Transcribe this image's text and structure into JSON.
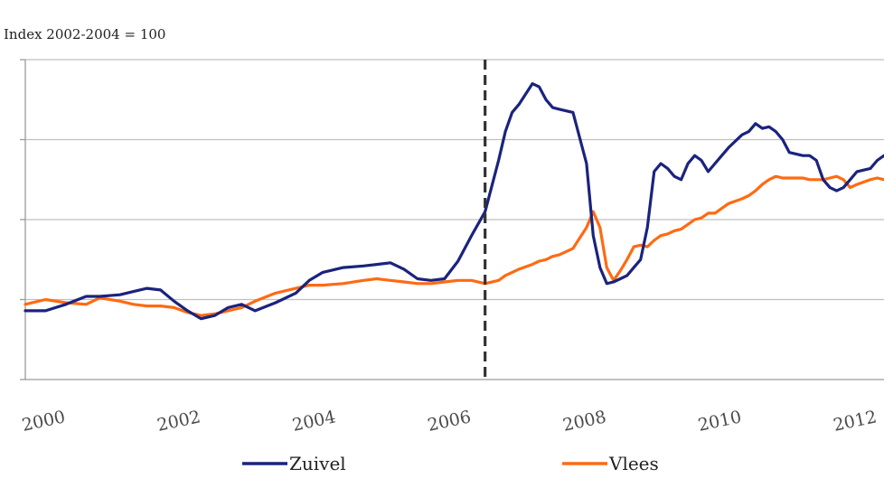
{
  "chart_data": {
    "type": "line",
    "title": "",
    "ylabel": "Index 2002-2004 = 100",
    "xlabel": "",
    "xlim": [
      1999.9,
      2012.6
    ],
    "ylim": [
      50,
      250
    ],
    "yticks": [
      50,
      100,
      150,
      200,
      250
    ],
    "xticks": [
      2000,
      2002,
      2004,
      2006,
      2008,
      2010,
      2012
    ],
    "grid": true,
    "legend": "bottom",
    "vline": 2006.7,
    "colors": {
      "Zuivel": "#1a237e",
      "Vlees": "#ff6a13",
      "vline": "#333333"
    },
    "series": [
      {
        "name": "Zuivel",
        "x": [
          1999.9,
          2000.2,
          2000.5,
          2000.8,
          2001.0,
          2001.3,
          2001.5,
          2001.7,
          2001.9,
          2002.1,
          2002.3,
          2002.5,
          2002.7,
          2002.9,
          2003.1,
          2003.3,
          2003.6,
          2003.9,
          2004.1,
          2004.3,
          2004.6,
          2004.9,
          2005.1,
          2005.3,
          2005.5,
          2005.7,
          2005.9,
          2006.1,
          2006.3,
          2006.5,
          2006.7,
          2006.9,
          2007.0,
          2007.1,
          2007.2,
          2007.4,
          2007.5,
          2007.6,
          2007.7,
          2007.8,
          2008.0,
          2008.2,
          2008.3,
          2008.4,
          2008.5,
          2008.6,
          2008.7,
          2008.8,
          2008.9,
          2009.0,
          2009.1,
          2009.2,
          2009.3,
          2009.4,
          2009.5,
          2009.6,
          2009.7,
          2009.8,
          2009.9,
          2010.0,
          2010.1,
          2010.2,
          2010.3,
          2010.5,
          2010.6,
          2010.7,
          2010.8,
          2010.9,
          2011.0,
          2011.1,
          2011.2,
          2011.4,
          2011.5,
          2011.6,
          2011.7,
          2011.8,
          2011.9,
          2012.0,
          2012.1,
          2012.2,
          2012.4,
          2012.5,
          2012.6
        ],
        "values": [
          93,
          93,
          97,
          102,
          102,
          103,
          105,
          107,
          106,
          99,
          93,
          88,
          90,
          95,
          97,
          93,
          98,
          104,
          112,
          117,
          120,
          121,
          122,
          123,
          119,
          113,
          112,
          113,
          124,
          140,
          155,
          187,
          205,
          217,
          222,
          235,
          233,
          225,
          220,
          219,
          217,
          185,
          140,
          120,
          110,
          111,
          113,
          115,
          120,
          125,
          145,
          180,
          185,
          182,
          177,
          175,
          185,
          190,
          187,
          180,
          185,
          190,
          195,
          203,
          205,
          210,
          207,
          208,
          205,
          200,
          192,
          190,
          190,
          187,
          175,
          170,
          168,
          170,
          175,
          180,
          182,
          187,
          190
        ]
      },
      {
        "name": "Vlees",
        "x": [
          1999.9,
          2000.2,
          2000.5,
          2000.8,
          2001.0,
          2001.3,
          2001.5,
          2001.7,
          2001.9,
          2002.1,
          2002.3,
          2002.5,
          2002.7,
          2002.9,
          2003.1,
          2003.3,
          2003.6,
          2003.9,
          2004.1,
          2004.3,
          2004.6,
          2004.9,
          2005.1,
          2005.3,
          2005.5,
          2005.7,
          2005.9,
          2006.1,
          2006.3,
          2006.5,
          2006.7,
          2006.9,
          2007.0,
          2007.1,
          2007.2,
          2007.4,
          2007.5,
          2007.6,
          2007.7,
          2007.8,
          2008.0,
          2008.2,
          2008.3,
          2008.4,
          2008.5,
          2008.6,
          2008.7,
          2008.8,
          2008.9,
          2009.0,
          2009.1,
          2009.2,
          2009.3,
          2009.4,
          2009.5,
          2009.6,
          2009.7,
          2009.8,
          2009.9,
          2010.0,
          2010.1,
          2010.2,
          2010.3,
          2010.5,
          2010.6,
          2010.7,
          2010.8,
          2010.9,
          2011.0,
          2011.1,
          2011.2,
          2011.4,
          2011.5,
          2011.6,
          2011.7,
          2011.8,
          2011.9,
          2012.0,
          2012.1,
          2012.2,
          2012.4,
          2012.5,
          2012.6
        ],
        "values": [
          97,
          100,
          98,
          97,
          101,
          99,
          97,
          96,
          96,
          95,
          92,
          90,
          91,
          93,
          95,
          99,
          104,
          107,
          109,
          109,
          110,
          112,
          113,
          112,
          111,
          110,
          110,
          111,
          112,
          112,
          110,
          112,
          115,
          117,
          119,
          122,
          124,
          125,
          127,
          128,
          132,
          145,
          155,
          145,
          120,
          112,
          118,
          125,
          133,
          134,
          133,
          137,
          140,
          141,
          143,
          144,
          147,
          150,
          151,
          154,
          154,
          157,
          160,
          163,
          165,
          168,
          172,
          175,
          177,
          176,
          176,
          176,
          175,
          175,
          175,
          176,
          177,
          175,
          170,
          172,
          175,
          176,
          175
        ]
      }
    ]
  }
}
